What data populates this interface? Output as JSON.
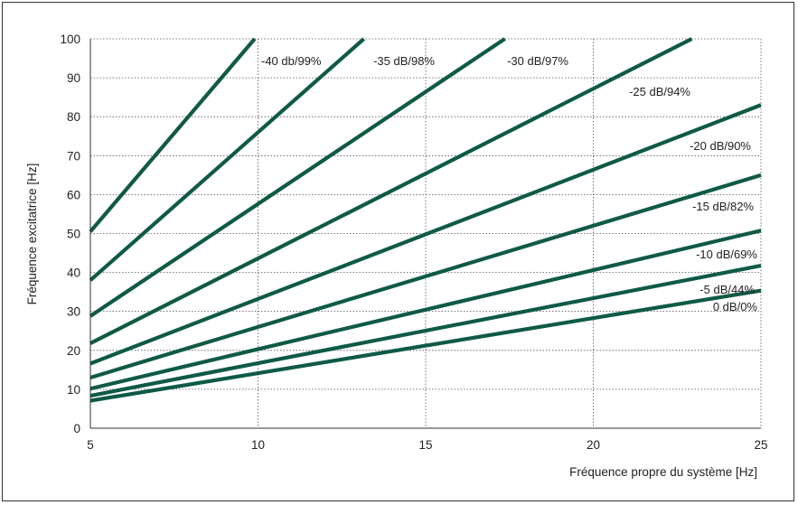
{
  "chart_data": {
    "type": "line",
    "title": "",
    "xlabel": "Fréquence propre du système [Hz]",
    "ylabel": "Fréquence excitatrice [Hz]",
    "xlim": [
      5,
      25
    ],
    "ylim": [
      0,
      100
    ],
    "xticks": [
      5,
      10,
      15,
      20,
      25
    ],
    "yticks": [
      0,
      10,
      20,
      30,
      40,
      50,
      60,
      70,
      80,
      90,
      100
    ],
    "xtick_labels": [
      "5",
      "10",
      "15",
      "20",
      "25"
    ],
    "ytick_labels": [
      "0",
      "10",
      "20",
      "30",
      "40",
      "50",
      "60",
      "70",
      "80",
      "90",
      "100"
    ],
    "grid": true,
    "line_color": "#0f5a46",
    "grid_color": "#555555",
    "series": [
      {
        "name": "0 dB/0%",
        "ratio": 1.414
      },
      {
        "name": "-5 dB/44%",
        "ratio": 1.67
      },
      {
        "name": "-10 dB/69%",
        "ratio": 2.03
      },
      {
        "name": "-15 dB/82%",
        "ratio": 2.6
      },
      {
        "name": "-20 dB/90%",
        "ratio": 3.32
      },
      {
        "name": "-25 dB/94%",
        "ratio": 4.36
      },
      {
        "name": "-30 dB/97%",
        "ratio": 5.76
      },
      {
        "name": "-35 dB/98%",
        "ratio": 7.6
      },
      {
        "name": "-40 db/99%",
        "ratio": 10.1
      }
    ]
  }
}
